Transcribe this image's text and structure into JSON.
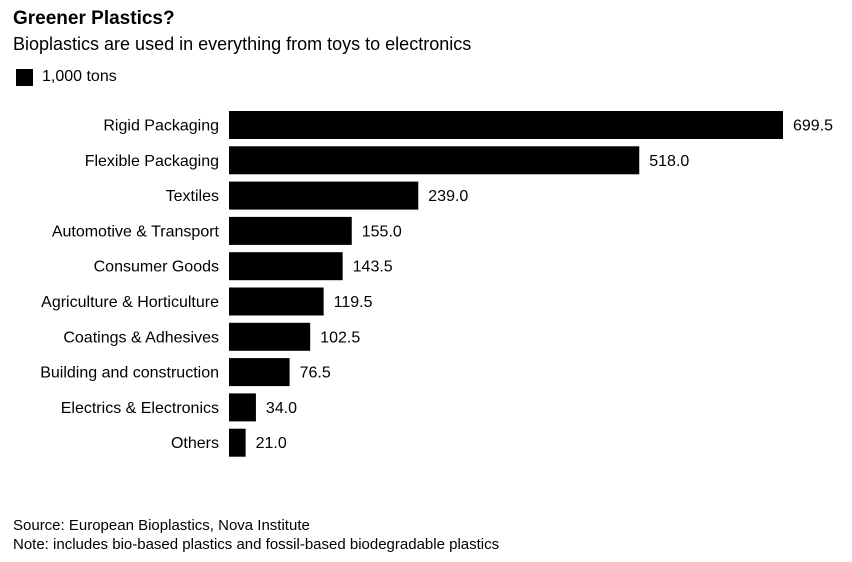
{
  "title": "Greener Plastics?",
  "subtitle": "Bioplastics are used in everything from toys to electronics",
  "legend": {
    "label": "1,000 tons",
    "color": "#000000"
  },
  "chart_data": {
    "type": "bar",
    "orientation": "horizontal",
    "categories": [
      "Rigid Packaging",
      "Flexible Packaging",
      "Textiles",
      "Automotive & Transport",
      "Consumer Goods",
      "Agriculture & Horticulture",
      "Coatings & Adhesives",
      "Building and construction",
      "Electrics & Electronics",
      "Others"
    ],
    "values": [
      699.5,
      518.0,
      239.0,
      155.0,
      143.5,
      119.5,
      102.5,
      76.5,
      34.0,
      21.0
    ],
    "value_labels": [
      "699.5",
      "518.0",
      "239.0",
      "155.0",
      "143.5",
      "119.5",
      "102.5",
      "76.5",
      "34.0",
      "21.0"
    ],
    "series": [
      {
        "name": "1,000 tons",
        "values": [
          699.5,
          518.0,
          239.0,
          155.0,
          143.5,
          119.5,
          102.5,
          76.5,
          34.0,
          21.0
        ]
      }
    ],
    "bar_color": "#000000",
    "xlim": [
      0,
      699.5
    ],
    "grid": false,
    "legend_position": "top-left"
  },
  "footer": {
    "source": "Source: European Bioplastics, Nova Institute",
    "note": "Note: includes bio-based plastics and fossil-based biodegradable plastics"
  }
}
